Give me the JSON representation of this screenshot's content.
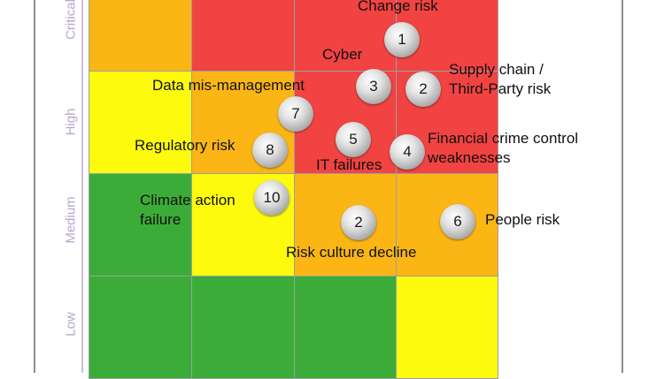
{
  "axis": {
    "y_levels": [
      "Critical",
      "High",
      "Medium",
      "Low"
    ]
  },
  "colors": {
    "red": "#f14342",
    "orange": "#fbb615",
    "yellow": "#fdfa0e",
    "green": "#3cac38"
  },
  "matrix": [
    [
      "orange",
      "red",
      "red",
      "red"
    ],
    [
      "yellow",
      "orange",
      "red",
      "red"
    ],
    [
      "green",
      "yellow",
      "orange",
      "orange"
    ],
    [
      "green",
      "green",
      "green",
      "yellow"
    ]
  ],
  "risks": [
    {
      "number": "1",
      "label": "Change risk"
    },
    {
      "number": "2",
      "label": "Supply chain /\nThird-Party risk"
    },
    {
      "number": "3",
      "label": "Cyber"
    },
    {
      "number": "4",
      "label": "Financial crime control\nweaknesses"
    },
    {
      "number": "5",
      "label": "IT failures"
    },
    {
      "number": "6",
      "label": "People risk"
    },
    {
      "number": "7",
      "label": "Data mis-management"
    },
    {
      "number": "8",
      "label": "Regulatory risk"
    },
    {
      "number": "10",
      "label": "Climate action\nfailure"
    },
    {
      "number": "2",
      "label": "Risk culture decline"
    }
  ]
}
